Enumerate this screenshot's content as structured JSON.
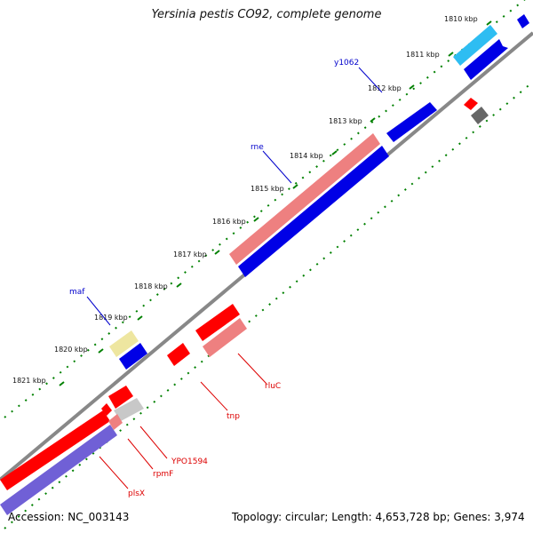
{
  "title": "Yersinia pestis CO92, complete genome",
  "footer": {
    "accession": "Accession: NC_003143",
    "summary": "Topology: circular; Length: 4,653,728 bp; Genes: 3,974"
  },
  "tick_labels": [
    "1810 kbp",
    "1811 kbp",
    "1812 kbp",
    "1813 kbp",
    "1814 kbp",
    "1815 kbp",
    "1816 kbp",
    "1817 kbp",
    "1818 kbp",
    "1819 kbp",
    "1820 kbp",
    "1821 kbp"
  ],
  "gene_labels": {
    "top_strand": [
      "y1062",
      "rne",
      "maf"
    ],
    "bottom_strand": [
      "rluC",
      "tnp",
      "YPO1594",
      "rpmF",
      "plsX"
    ]
  },
  "colors": {
    "forward_cds": "#0000e6",
    "forward_light": "#2ebdf2",
    "forward_pale": "#eee6a0",
    "reverse_cds": "#ff0000",
    "reverse_light": "#ee8080",
    "reverse_purple": "#7060d6",
    "gray_feature": "#888888",
    "backbone": "#888888",
    "tick_green": "#008000"
  }
}
